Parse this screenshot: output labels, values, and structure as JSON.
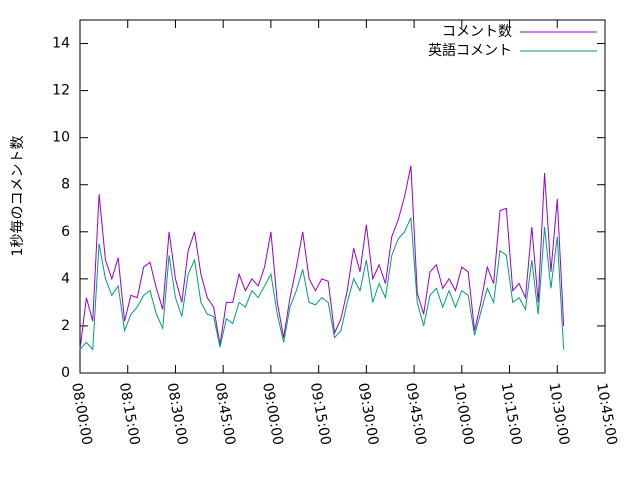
{
  "chart_data": {
    "type": "line",
    "ylabel": "1秒毎のコメント数",
    "x": [
      "08:00:00",
      "08:02:00",
      "08:04:00",
      "08:06:00",
      "08:08:00",
      "08:10:00",
      "08:12:00",
      "08:14:00",
      "08:16:00",
      "08:18:00",
      "08:20:00",
      "08:22:00",
      "08:24:00",
      "08:26:00",
      "08:28:00",
      "08:30:00",
      "08:32:00",
      "08:34:00",
      "08:36:00",
      "08:38:00",
      "08:40:00",
      "08:42:00",
      "08:44:00",
      "08:46:00",
      "08:48:00",
      "08:50:00",
      "08:52:00",
      "08:54:00",
      "08:56:00",
      "08:58:00",
      "09:00:00",
      "09:02:00",
      "09:04:00",
      "09:06:00",
      "09:08:00",
      "09:10:00",
      "09:12:00",
      "09:14:00",
      "09:16:00",
      "09:18:00",
      "09:20:00",
      "09:22:00",
      "09:24:00",
      "09:26:00",
      "09:28:00",
      "09:30:00",
      "09:32:00",
      "09:34:00",
      "09:36:00",
      "09:38:00",
      "09:40:00",
      "09:42:00",
      "09:44:00",
      "09:46:00",
      "09:48:00",
      "09:50:00",
      "09:52:00",
      "09:54:00",
      "09:56:00",
      "09:58:00",
      "10:00:00",
      "10:02:00",
      "10:04:00",
      "10:06:00",
      "10:08:00",
      "10:10:00",
      "10:12:00",
      "10:14:00",
      "10:16:00",
      "10:18:00",
      "10:20:00",
      "10:22:00",
      "10:24:00",
      "10:26:00",
      "10:28:00",
      "10:30:00",
      "10:32:00"
    ],
    "series": [
      {
        "name": "コメント数",
        "color": "#9400d3",
        "values": [
          1.0,
          3.2,
          2.2,
          7.6,
          4.8,
          4.0,
          4.9,
          2.2,
          3.3,
          3.2,
          4.5,
          4.7,
          3.6,
          2.7,
          6.0,
          4.0,
          3.0,
          5.2,
          6.0,
          4.2,
          3.2,
          2.8,
          1.2,
          3.0,
          3.0,
          4.2,
          3.5,
          4.0,
          3.7,
          4.5,
          6.0,
          3.0,
          1.5,
          3.2,
          4.5,
          6.0,
          4.0,
          3.5,
          4.0,
          3.9,
          1.7,
          2.3,
          3.5,
          5.3,
          4.3,
          6.3,
          4.0,
          4.6,
          3.8,
          5.8,
          6.5,
          7.5,
          8.8,
          3.4,
          2.5,
          4.3,
          4.6,
          3.6,
          4.0,
          3.5,
          4.5,
          4.3,
          1.8,
          3.0,
          4.5,
          3.8,
          6.9,
          7.0,
          3.5,
          3.8,
          3.2,
          6.2,
          3.0,
          8.5,
          4.3,
          7.4,
          2.0
        ]
      },
      {
        "name": "英語コメント",
        "color": "#009e73",
        "values": [
          1.0,
          1.3,
          1.0,
          5.5,
          4.0,
          3.3,
          3.7,
          1.8,
          2.5,
          2.8,
          3.3,
          3.5,
          2.5,
          1.9,
          5.0,
          3.2,
          2.4,
          4.2,
          4.8,
          3.0,
          2.5,
          2.4,
          1.1,
          2.3,
          2.1,
          3.0,
          2.8,
          3.5,
          3.2,
          3.7,
          4.2,
          2.5,
          1.3,
          2.8,
          3.5,
          4.4,
          3.0,
          2.9,
          3.2,
          3.0,
          1.5,
          1.8,
          3.0,
          4.0,
          3.5,
          4.8,
          3.0,
          3.8,
          3.2,
          5.0,
          5.7,
          6.0,
          6.6,
          3.0,
          2.0,
          3.3,
          3.6,
          2.8,
          3.5,
          2.8,
          3.5,
          3.3,
          1.6,
          2.6,
          3.6,
          3.0,
          5.2,
          5.0,
          3.0,
          3.2,
          2.7,
          4.8,
          2.5,
          6.2,
          3.6,
          5.8,
          1.0
        ]
      }
    ],
    "xlim": [
      "08:00:00",
      "10:45:00"
    ],
    "xticks": [
      "08:00:00",
      "08:15:00",
      "08:30:00",
      "08:45:00",
      "09:00:00",
      "09:15:00",
      "09:30:00",
      "09:45:00",
      "10:00:00",
      "10:15:00",
      "10:30:00",
      "10:45:00"
    ],
    "ylim": [
      0,
      15
    ],
    "yticks": [
      0,
      2,
      4,
      6,
      8,
      10,
      12,
      14
    ],
    "legend": "top-right"
  }
}
